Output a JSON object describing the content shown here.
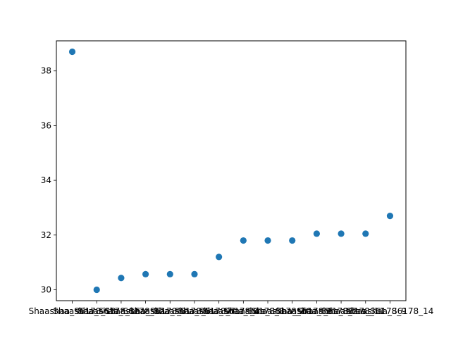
{
  "chart_data": {
    "type": "scatter",
    "title": "",
    "xlabel": "",
    "ylabel": "",
    "categories": [
      "Shaashaa_S6178_13",
      "Shaashaa_S6178_16",
      "Shaashaa_S6178_12",
      "Shaashaa_S6178_3",
      "Shaashaa_S6178_5",
      "Shaashaa_S6178_7",
      "Shaashaa_S6178_4",
      "Shaashaa_S6178_8",
      "Shaashaa_S6178_10",
      "Shaashaa_S6178_6",
      "Shaashaa_S6178_2",
      "Shaashaa_S6178_11",
      "Shaashaa_S6178_9",
      "Shaashaa_S6178_14"
    ],
    "values": [
      38.7,
      30.0,
      30.43,
      30.57,
      30.57,
      30.57,
      31.2,
      31.8,
      31.8,
      31.8,
      32.05,
      32.05,
      32.05,
      32.7
    ],
    "ylim": [
      29.6,
      39.1
    ],
    "yticks": [
      30,
      32,
      34,
      36,
      38
    ],
    "point_color": "#1f77b4",
    "grid": false
  }
}
